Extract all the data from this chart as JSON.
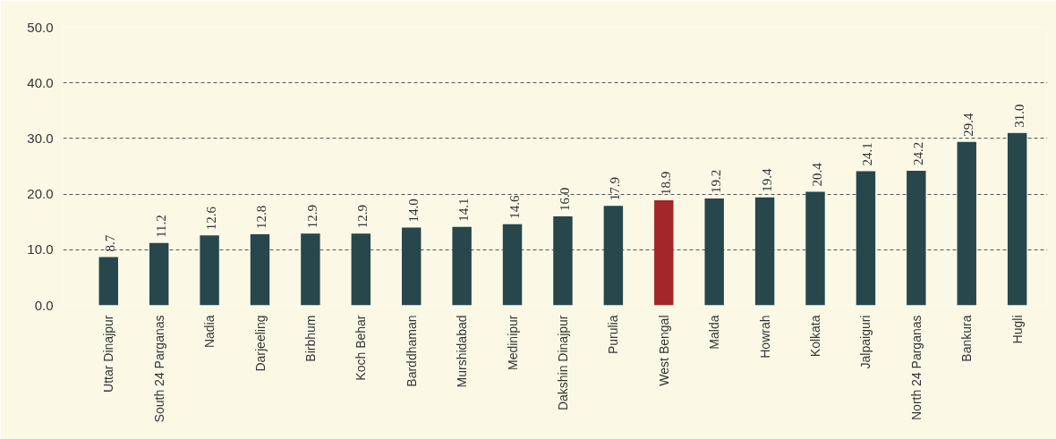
{
  "chart_data": {
    "type": "bar",
    "categories": [
      "Uttar Dinajpur",
      "South 24 Parganas",
      "Nadia",
      "Darjeeling",
      "Birbhum",
      "Koch Behar",
      "Barddhaman",
      "Murshidabad",
      "Medinipur",
      "Dakshin Dinajpur",
      "Purulia",
      "West Bengal",
      "Malda",
      "Howrah",
      "Kolkata",
      "Jalpaiguri",
      "North 24 Parganas",
      "Bankura",
      "Hugli"
    ],
    "values": [
      8.7,
      11.2,
      12.6,
      12.8,
      12.9,
      12.9,
      14.0,
      14.1,
      14.6,
      16.0,
      17.9,
      18.9,
      19.2,
      19.4,
      20.4,
      24.1,
      24.2,
      29.4,
      31.0
    ],
    "colors": [
      "#27474c",
      "#27474c",
      "#27474c",
      "#27474c",
      "#27474c",
      "#27474c",
      "#27474c",
      "#27474c",
      "#27474c",
      "#27474c",
      "#27474c",
      "#a3262a",
      "#27474c",
      "#27474c",
      "#27474c",
      "#27474c",
      "#27474c",
      "#27474c",
      "#27474c"
    ],
    "value_labels": [
      "8.7",
      "11.2",
      "12.6",
      "12.8",
      "12.9",
      "12.9",
      "14.0",
      "14.1",
      "14.6",
      "16.0",
      "17.9",
      "18.9",
      "19.2",
      "19.4",
      "20.4",
      "24.1",
      "24.2",
      "29.4",
      "31.0"
    ],
    "ylim": [
      0,
      50
    ],
    "yticks": [
      {
        "value": 0,
        "label": "0.0"
      },
      {
        "value": 10,
        "label": "10.0"
      },
      {
        "value": 20,
        "label": "20.0"
      },
      {
        "value": 30,
        "label": "30.0"
      },
      {
        "value": 40,
        "label": "40.0"
      },
      {
        "value": 50,
        "label": "50.0"
      }
    ],
    "grid": "y"
  }
}
